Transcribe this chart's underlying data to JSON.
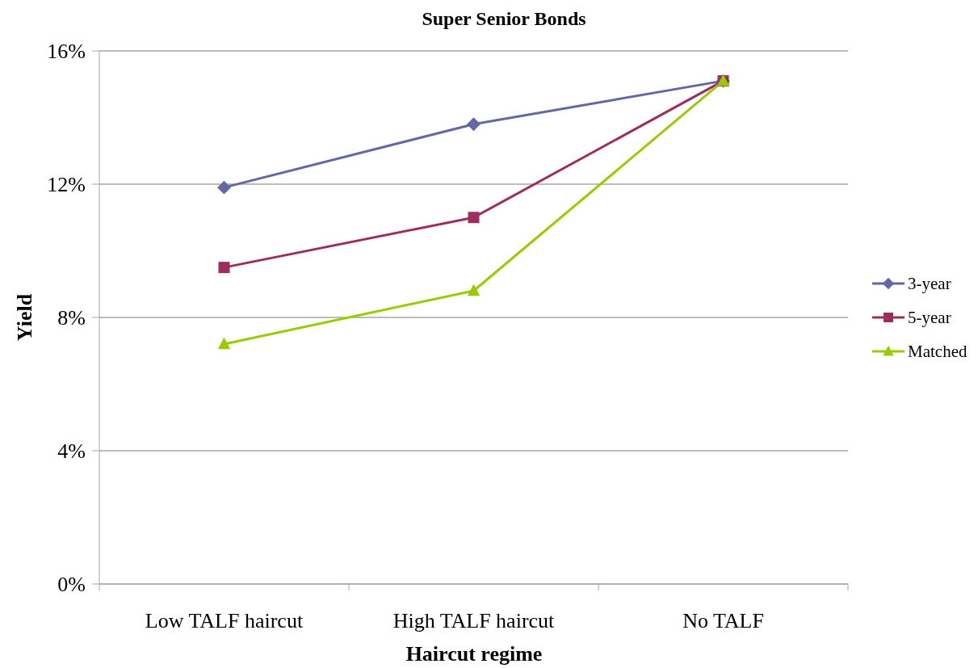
{
  "chart_data": {
    "type": "line",
    "title": "Super Senior Bonds",
    "xlabel": "Haircut regime",
    "ylabel": "Yield",
    "categories": [
      "Low TALF haircut",
      "High TALF haircut",
      "No TALF"
    ],
    "series": [
      {
        "name": "3-year",
        "color": "#6466a6",
        "marker": "diamond",
        "values": [
          11.9,
          13.8,
          15.1
        ]
      },
      {
        "name": "5-year",
        "color": "#9b2d5f",
        "marker": "square",
        "values": [
          9.5,
          11.0,
          15.1
        ]
      },
      {
        "name": "Matched",
        "color": "#99cc00",
        "marker": "triangle",
        "values": [
          7.2,
          8.8,
          15.1
        ]
      }
    ],
    "ylim": [
      0,
      16
    ],
    "yticks": [
      {
        "value": 0,
        "label": "0%"
      },
      {
        "value": 4,
        "label": "4%"
      },
      {
        "value": 8,
        "label": "8%"
      },
      {
        "value": 12,
        "label": "12%"
      },
      {
        "value": 16,
        "label": "16%"
      }
    ],
    "grid": "y",
    "legend": "right",
    "line_style": "solid"
  }
}
